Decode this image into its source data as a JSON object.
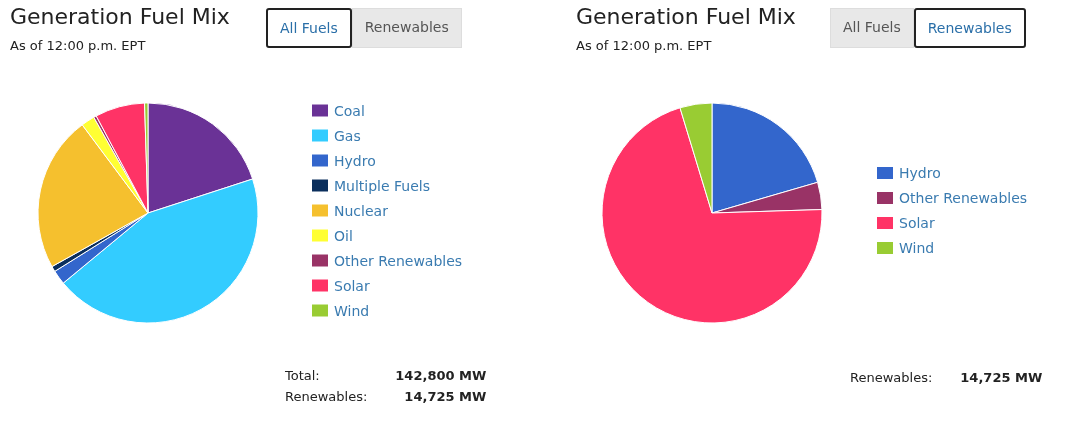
{
  "chart_data": [
    {
      "type": "pie",
      "title": "Generation Fuel Mix",
      "subtitle": "As of 12:00 p.m. EPT",
      "categories": [
        "Coal",
        "Gas",
        "Hydro",
        "Multiple Fuels",
        "Nuclear",
        "Oil",
        "Other Renewables",
        "Solar",
        "Wind"
      ],
      "values": [
        20,
        44,
        2.1,
        0.8,
        22.9,
        2,
        0.4,
        7.3,
        0.5
      ],
      "colors": [
        "#6a3296",
        "#33ccff",
        "#3366cc",
        "#0a2e5c",
        "#f5c02e",
        "#ffff33",
        "#993366",
        "#ff3366",
        "#99cc33"
      ],
      "legend": "right",
      "annotations": [
        "All Fuels",
        "Renewables",
        "Total:",
        "142,800 MW",
        "Renewables:",
        "14,725 MW"
      ]
    },
    {
      "type": "pie",
      "title": "Generation Fuel Mix",
      "subtitle": "As of 12:00 p.m. EPT",
      "categories": [
        "Hydro",
        "Other Renewables",
        "Solar",
        "Wind"
      ],
      "values": [
        20.5,
        4,
        70.8,
        4.7
      ],
      "colors": [
        "#3366cc",
        "#993366",
        "#ff3366",
        "#99cc33"
      ],
      "legend": "right",
      "annotations": [
        "All Fuels",
        "Renewables",
        "Renewables:",
        "14,725 MW"
      ]
    }
  ]
}
